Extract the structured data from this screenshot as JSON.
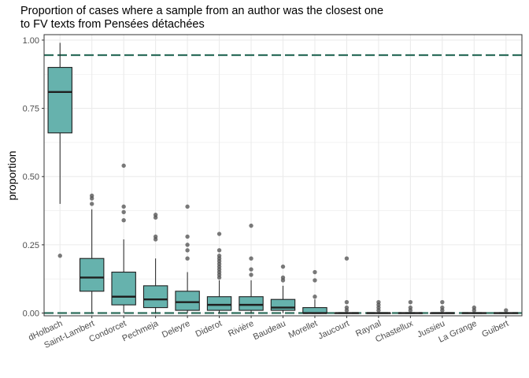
{
  "chart_data": {
    "type": "box",
    "title": "Proportion of cases where a sample from an author was the closest one",
    "subtitle": "to FV texts from Pensées détachées",
    "xlabel": "",
    "ylabel": "proportion",
    "ylim": [
      -0.01,
      1.02
    ],
    "yticks": [
      "0.00",
      "0.25",
      "0.50",
      "0.75",
      "1.00"
    ],
    "grid": true,
    "colors": {
      "box_fill": "#66b2ad",
      "box_line": "#1f1f1f",
      "outlier": "#4d4d4d",
      "reference_line": "#2e6e5c",
      "grid": "#ebebeb",
      "border": "#333333"
    },
    "reference_lines": [
      0.945,
      0.0
    ],
    "categories": [
      "dHolbach",
      "Saint-Lambert",
      "Condorcet",
      "Pechmeja",
      "Deleyre",
      "Diderot",
      "Rivière",
      "Baudeau",
      "Morellet",
      "Jaucourt",
      "Raynal",
      "Chastellux",
      "Jussieu",
      "La Grange",
      "Guibert"
    ],
    "boxes": [
      {
        "min": 0.4,
        "q1": 0.66,
        "median": 0.81,
        "q3": 0.9,
        "max": 0.99,
        "outliers": [
          0.21
        ]
      },
      {
        "min": 0.0,
        "q1": 0.08,
        "median": 0.13,
        "q3": 0.2,
        "max": 0.38,
        "outliers": [
          0.4,
          0.42,
          0.43
        ]
      },
      {
        "min": 0.0,
        "q1": 0.03,
        "median": 0.06,
        "q3": 0.15,
        "max": 0.27,
        "outliers": [
          0.34,
          0.37,
          0.39,
          0.54
        ]
      },
      {
        "min": 0.0,
        "q1": 0.02,
        "median": 0.05,
        "q3": 0.1,
        "max": 0.2,
        "outliers": [
          0.27,
          0.28,
          0.35,
          0.36
        ]
      },
      {
        "min": 0.0,
        "q1": 0.01,
        "median": 0.04,
        "q3": 0.08,
        "max": 0.15,
        "outliers": [
          0.2,
          0.23,
          0.25,
          0.28,
          0.39
        ]
      },
      {
        "min": 0.0,
        "q1": 0.01,
        "median": 0.03,
        "q3": 0.06,
        "max": 0.12,
        "outliers": [
          0.13,
          0.14,
          0.15,
          0.16,
          0.17,
          0.18,
          0.19,
          0.2,
          0.21,
          0.23,
          0.29
        ]
      },
      {
        "min": 0.0,
        "q1": 0.01,
        "median": 0.03,
        "q3": 0.06,
        "max": 0.12,
        "outliers": [
          0.14,
          0.16,
          0.2,
          0.32
        ]
      },
      {
        "min": 0.0,
        "q1": 0.01,
        "median": 0.02,
        "q3": 0.05,
        "max": 0.1,
        "outliers": [
          0.12,
          0.13,
          0.17
        ]
      },
      {
        "min": 0.0,
        "q1": 0.0,
        "median": 0.0,
        "q3": 0.02,
        "max": 0.05,
        "outliers": [
          0.06,
          0.12,
          0.15
        ]
      },
      {
        "min": 0.0,
        "q1": 0.0,
        "median": 0.0,
        "q3": 0.0,
        "max": 0.0,
        "outliers": [
          0.01,
          0.02,
          0.04,
          0.2
        ]
      },
      {
        "min": 0.0,
        "q1": 0.0,
        "median": 0.0,
        "q3": 0.0,
        "max": 0.0,
        "outliers": [
          0.01,
          0.02,
          0.03,
          0.04
        ]
      },
      {
        "min": 0.0,
        "q1": 0.0,
        "median": 0.0,
        "q3": 0.0,
        "max": 0.0,
        "outliers": [
          0.01,
          0.02,
          0.04
        ]
      },
      {
        "min": 0.0,
        "q1": 0.0,
        "median": 0.0,
        "q3": 0.0,
        "max": 0.0,
        "outliers": [
          0.01,
          0.02,
          0.04
        ]
      },
      {
        "min": 0.0,
        "q1": 0.0,
        "median": 0.0,
        "q3": 0.0,
        "max": 0.0,
        "outliers": [
          0.01,
          0.02
        ]
      },
      {
        "min": 0.0,
        "q1": 0.0,
        "median": 0.0,
        "q3": 0.0,
        "max": 0.0,
        "outliers": [
          0.01
        ]
      }
    ]
  }
}
